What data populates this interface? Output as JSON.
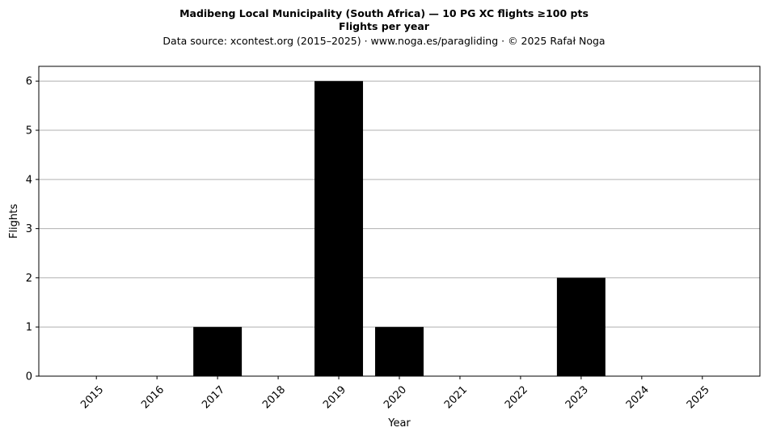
{
  "chart_data": {
    "type": "bar",
    "title": "Madibeng Local Municipality (South Africa)  —  10 PG XC flights ≥100 pts",
    "subtitle": "Flights per year",
    "source_note": "Data source: xcontest.org (2015–2025)  ·  www.noga.es/paragliding  ·  © 2025 Rafał Noga",
    "xlabel": "Year",
    "ylabel": "Flights",
    "categories": [
      "2015",
      "2016",
      "2017",
      "2018",
      "2019",
      "2020",
      "2021",
      "2022",
      "2023",
      "2024",
      "2025"
    ],
    "values": [
      0,
      0,
      1,
      0,
      6,
      1,
      0,
      0,
      2,
      0,
      0
    ],
    "ylim": [
      0,
      6.3
    ],
    "yticks": [
      0,
      1,
      2,
      3,
      4,
      5,
      6
    ],
    "grid": "horizontal",
    "bar_color": "#000000",
    "grid_color": "#b0b0b0"
  }
}
